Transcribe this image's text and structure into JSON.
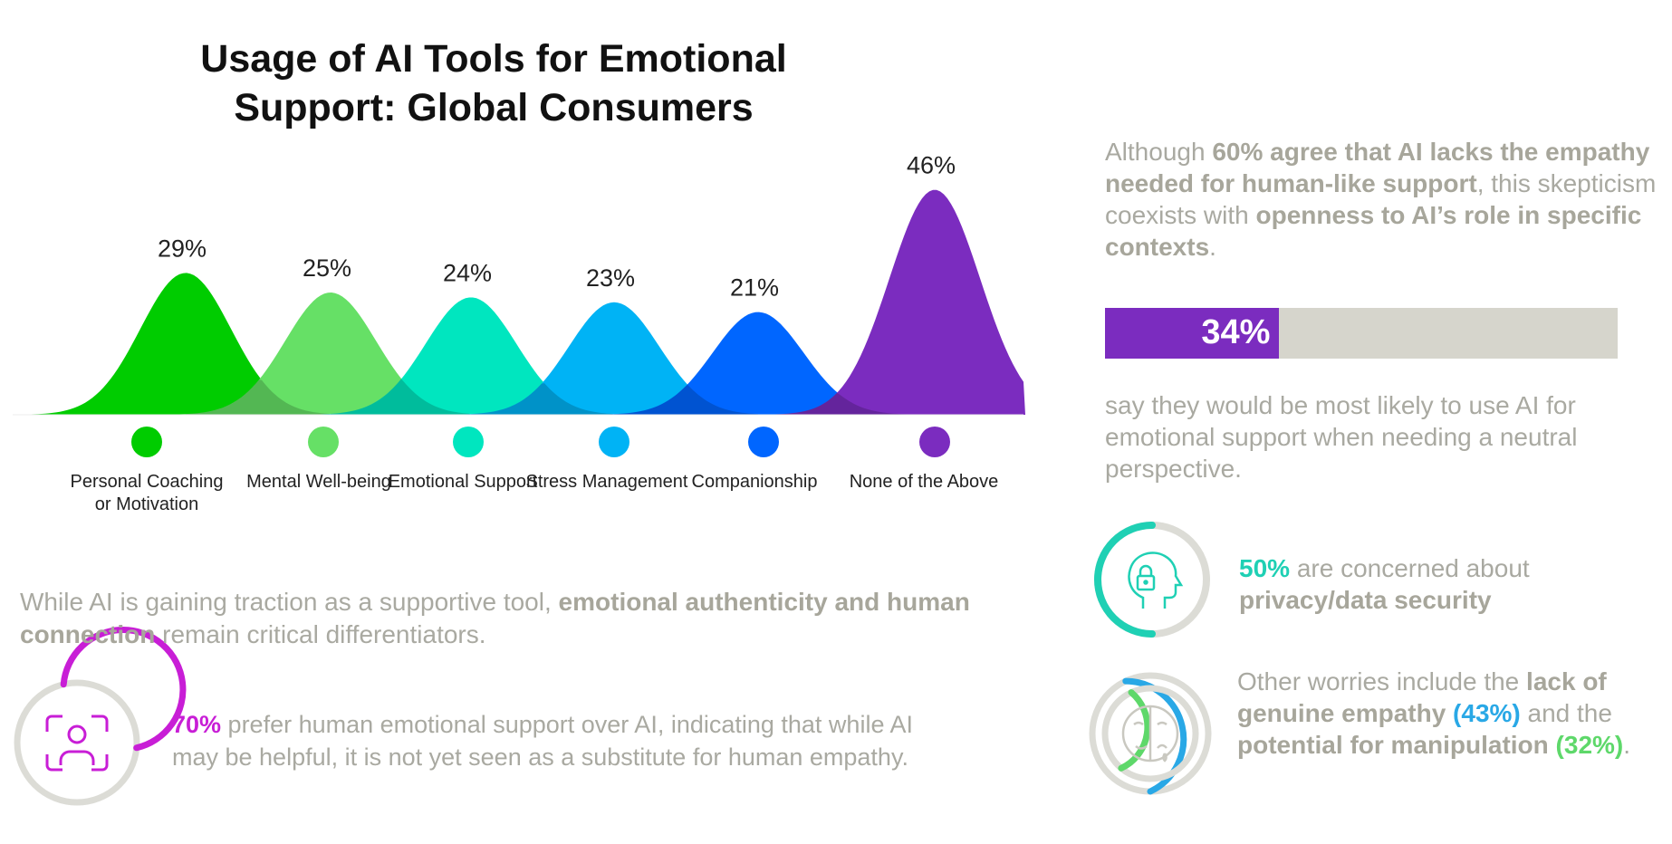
{
  "chart_data": {
    "type": "area",
    "title": "Usage of AI Tools for Emotional Support: Global Consumers",
    "categories": [
      "Personal Coaching or Motivation",
      "Mental Well-being",
      "Emotional Support",
      "Stress Management",
      "Companionship",
      "None of the Above"
    ],
    "values": [
      29,
      25,
      24,
      23,
      21,
      46
    ],
    "value_labels": [
      "29%",
      "25%",
      "24%",
      "23%",
      "21%",
      "46%"
    ],
    "colors": [
      "#00cc00",
      "#66e066",
      "#00e6bf",
      "#00b3f5",
      "#0066ff",
      "#7b2cbf"
    ],
    "legend": "below",
    "grid": false
  },
  "left_note": {
    "p1": "While AI is gaining traction as a supportive tool, ",
    "b1": "emotional authenticity and human connection",
    "p2": " remain critical differentiators."
  },
  "human_support": {
    "pct": "70%",
    "text": " prefer human emotional support over AI, indicating that while AI may be helpful, it is not yet seen as a substitute for human empathy.",
    "value": 70,
    "color": "#c81ed6"
  },
  "right_intro": {
    "p1": "Although ",
    "b1": "60% agree that AI lacks the empathy needed for human-like support",
    "p2": ", this skepticism coexists with ",
    "b2": "openness to AI’s role in specific contexts",
    "p3": "."
  },
  "neutral_bar": {
    "value_label": "34%",
    "value": 34,
    "fill_color": "#7b2cbf",
    "track_color": "#d6d5cc",
    "caption": "say they would be most likely to use AI for emotional support when needing a neutral perspective."
  },
  "privacy": {
    "pct": "50%",
    "p1": " are concerned about ",
    "b1": "privacy/data security",
    "value": 50,
    "color": "#1fd0b4",
    "icon": "head-lock-icon"
  },
  "worries": {
    "p1": "Other worries include the ",
    "b1": "lack of genuine empathy",
    "pct1": "(43%)",
    "p2": " and the ",
    "b2": "potential for manipulation",
    "pct2": "(32%)",
    "p3": ".",
    "empathy_value": 43,
    "manipulation_value": 32,
    "empathy_color": "#29a8e6",
    "manipulation_color": "#5ed86a",
    "icon": "mask-icon"
  }
}
